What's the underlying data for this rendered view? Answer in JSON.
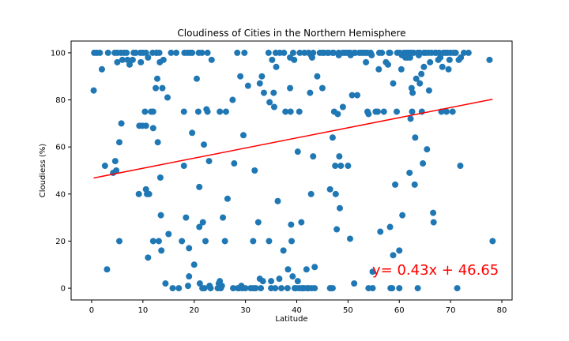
{
  "chart_data": {
    "type": "scatter",
    "title": "Cloudiness of Cities in the Northern Hemisphere",
    "xlabel": "Latitude",
    "ylabel": "Cloudiess (%)",
    "xlim": [
      -4,
      82
    ],
    "ylim": [
      -5,
      105
    ],
    "xticks": [
      0,
      10,
      20,
      30,
      40,
      50,
      60,
      70,
      80
    ],
    "yticks": [
      0,
      20,
      40,
      60,
      80,
      100
    ],
    "grid": false,
    "point_color": "#1f77b4",
    "regression": {
      "slope": 0.43,
      "intercept": 46.65,
      "x_range": [
        0.4,
        78.2
      ],
      "color": "#ff0000",
      "label": "y= 0.43x + 46.65"
    },
    "points": [
      [
        0.4,
        84
      ],
      [
        0.5,
        100
      ],
      [
        1,
        100
      ],
      [
        1.6,
        100
      ],
      [
        2,
        93
      ],
      [
        2.6,
        52
      ],
      [
        3,
        8
      ],
      [
        3.2,
        100
      ],
      [
        4.2,
        49
      ],
      [
        4.5,
        100
      ],
      [
        4.6,
        54
      ],
      [
        4.8,
        50
      ],
      [
        5,
        100
      ],
      [
        5,
        96
      ],
      [
        5.4,
        62
      ],
      [
        5.4,
        20
      ],
      [
        5.7,
        100
      ],
      [
        5.8,
        70
      ],
      [
        6,
        97
      ],
      [
        6.3,
        100
      ],
      [
        6.8,
        100
      ],
      [
        7,
        97
      ],
      [
        7.4,
        95
      ],
      [
        8,
        97
      ],
      [
        8.2,
        100
      ],
      [
        8.6,
        100
      ],
      [
        9.2,
        40
      ],
      [
        9.3,
        69
      ],
      [
        9.5,
        100
      ],
      [
        9.6,
        96
      ],
      [
        9.9,
        69
      ],
      [
        10,
        100
      ],
      [
        10.4,
        75
      ],
      [
        10.6,
        100
      ],
      [
        10.6,
        42
      ],
      [
        10.6,
        69
      ],
      [
        10.8,
        40
      ],
      [
        11,
        98
      ],
      [
        11,
        13
      ],
      [
        11.2,
        40
      ],
      [
        11.6,
        75
      ],
      [
        11.9,
        100
      ],
      [
        12,
        75
      ],
      [
        12,
        68
      ],
      [
        12,
        20
      ],
      [
        12.5,
        85
      ],
      [
        12.6,
        100
      ],
      [
        12.7,
        100
      ],
      [
        12.8,
        89
      ],
      [
        12.9,
        62
      ],
      [
        13.1,
        20
      ],
      [
        13.2,
        100
      ],
      [
        13.3,
        96
      ],
      [
        13.4,
        47
      ],
      [
        13.5,
        31
      ],
      [
        13.6,
        16
      ],
      [
        13.8,
        85
      ],
      [
        14,
        97
      ],
      [
        14.4,
        2
      ],
      [
        14.8,
        81
      ],
      [
        15,
        23
      ],
      [
        15.5,
        100
      ],
      [
        15.8,
        0
      ],
      [
        16.5,
        100
      ],
      [
        17,
        0
      ],
      [
        17.6,
        20
      ],
      [
        18,
        75
      ],
      [
        18.1,
        100
      ],
      [
        18,
        52
      ],
      [
        18.4,
        30
      ],
      [
        18.7,
        100
      ],
      [
        18.8,
        1
      ],
      [
        19,
        5
      ],
      [
        19,
        17
      ],
      [
        19.2,
        100
      ],
      [
        19.6,
        66
      ],
      [
        19.6,
        100
      ],
      [
        20,
        10
      ],
      [
        20.5,
        89
      ],
      [
        20.8,
        75
      ],
      [
        20.9,
        100
      ],
      [
        21,
        43
      ],
      [
        21.1,
        2
      ],
      [
        21,
        26
      ],
      [
        21.5,
        100
      ],
      [
        21.6,
        0
      ],
      [
        21.7,
        28
      ],
      [
        21.9,
        61
      ],
      [
        22,
        0
      ],
      [
        22.2,
        20
      ],
      [
        22.4,
        76
      ],
      [
        22.6,
        75
      ],
      [
        22.6,
        100
      ],
      [
        22.9,
        54
      ],
      [
        23,
        1
      ],
      [
        23.2,
        0
      ],
      [
        23.4,
        97
      ],
      [
        24.6,
        0
      ],
      [
        24.8,
        2
      ],
      [
        25,
        75
      ],
      [
        25,
        3
      ],
      [
        25.2,
        0
      ],
      [
        25.4,
        1
      ],
      [
        25.6,
        30
      ],
      [
        26,
        20
      ],
      [
        26.2,
        75
      ],
      [
        26.5,
        38
      ],
      [
        27.5,
        80
      ],
      [
        27.6,
        0
      ],
      [
        27.8,
        53
      ],
      [
        28.4,
        100
      ],
      [
        28.5,
        0
      ],
      [
        28.8,
        0
      ],
      [
        29,
        90
      ],
      [
        29.2,
        1
      ],
      [
        29.4,
        0
      ],
      [
        29.6,
        65
      ],
      [
        29.8,
        100
      ],
      [
        30,
        0
      ],
      [
        30.5,
        86
      ],
      [
        31,
        0
      ],
      [
        31.5,
        0
      ],
      [
        31.5,
        20
      ],
      [
        31.8,
        50
      ],
      [
        32,
        0
      ],
      [
        32.5,
        28
      ],
      [
        32.8,
        4
      ],
      [
        32.8,
        87
      ],
      [
        33.2,
        90
      ],
      [
        33,
        0
      ],
      [
        33.4,
        3
      ],
      [
        33.6,
        83
      ],
      [
        34.5,
        100
      ],
      [
        34.6,
        20
      ],
      [
        34.7,
        79
      ],
      [
        35,
        0
      ],
      [
        35,
        3
      ],
      [
        35.2,
        97
      ],
      [
        35.5,
        83
      ],
      [
        35.6,
        77
      ],
      [
        35.8,
        0
      ],
      [
        35.9,
        100
      ],
      [
        36,
        94
      ],
      [
        36.3,
        37
      ],
      [
        36.6,
        4
      ],
      [
        36.7,
        100
      ],
      [
        37,
        0
      ],
      [
        37.4,
        16
      ],
      [
        37.5,
        100
      ],
      [
        37.8,
        75
      ],
      [
        38.2,
        0
      ],
      [
        38.3,
        8
      ],
      [
        38.7,
        98
      ],
      [
        38.7,
        85
      ],
      [
        38.8,
        75
      ],
      [
        38.9,
        27
      ],
      [
        39,
        20
      ],
      [
        39.2,
        5
      ],
      [
        39.3,
        100
      ],
      [
        39.5,
        97
      ],
      [
        39.6,
        0
      ],
      [
        39.8,
        0
      ],
      [
        40.2,
        58
      ],
      [
        40.2,
        3
      ],
      [
        40.4,
        0
      ],
      [
        40.5,
        75
      ],
      [
        40.6,
        100
      ],
      [
        40.9,
        28
      ],
      [
        41,
        0
      ],
      [
        41.1,
        0
      ],
      [
        41.4,
        0
      ],
      [
        41.5,
        100
      ],
      [
        41.9,
        8
      ],
      [
        42,
        0
      ],
      [
        42.3,
        0
      ],
      [
        42.3,
        100
      ],
      [
        42.6,
        83
      ],
      [
        42.8,
        99
      ],
      [
        42.8,
        40
      ],
      [
        42.9,
        0
      ],
      [
        43,
        98
      ],
      [
        43.2,
        56
      ],
      [
        43.2,
        100
      ],
      [
        43.5,
        0
      ],
      [
        43.5,
        9
      ],
      [
        44,
        90
      ],
      [
        44.5,
        100
      ],
      [
        45,
        85
      ],
      [
        45,
        100
      ],
      [
        45.3,
        100
      ],
      [
        46,
        100
      ],
      [
        46.2,
        100
      ],
      [
        46.5,
        42
      ],
      [
        46.5,
        0
      ],
      [
        46.6,
        0
      ],
      [
        47,
        64
      ],
      [
        47,
        100
      ],
      [
        47,
        0
      ],
      [
        47.2,
        100
      ],
      [
        47.3,
        75
      ],
      [
        47.5,
        52
      ],
      [
        47.6,
        40
      ],
      [
        47.8,
        25
      ],
      [
        48,
        74
      ],
      [
        48.2,
        100
      ],
      [
        48.2,
        99
      ],
      [
        48.3,
        56
      ],
      [
        48.4,
        34
      ],
      [
        48.6,
        52
      ],
      [
        49,
        100
      ],
      [
        49,
        77
      ],
      [
        49.4,
        100
      ],
      [
        49.8,
        100
      ],
      [
        50,
        52
      ],
      [
        50.2,
        100
      ],
      [
        50.4,
        21
      ],
      [
        50.4,
        100
      ],
      [
        50.5,
        99
      ],
      [
        50.8,
        82
      ],
      [
        51.2,
        100
      ],
      [
        51.2,
        2
      ],
      [
        51.4,
        100
      ],
      [
        51.8,
        82
      ],
      [
        52.2,
        100
      ],
      [
        52.6,
        100
      ],
      [
        53,
        100
      ],
      [
        53.4,
        100
      ],
      [
        53.5,
        96
      ],
      [
        53.8,
        100
      ],
      [
        53.8,
        75
      ],
      [
        54,
        74
      ],
      [
        54,
        0
      ],
      [
        54.4,
        100
      ],
      [
        54.6,
        99
      ],
      [
        54.8,
        0
      ],
      [
        54.8,
        7
      ],
      [
        55.4,
        75
      ],
      [
        55.8,
        75
      ],
      [
        56,
        93
      ],
      [
        56.1,
        100
      ],
      [
        56.3,
        24
      ],
      [
        56.6,
        100
      ],
      [
        57,
        75
      ],
      [
        57.4,
        96
      ],
      [
        57.8,
        95
      ],
      [
        58,
        100
      ],
      [
        58.2,
        26
      ],
      [
        58.2,
        100
      ],
      [
        58.3,
        0
      ],
      [
        58.6,
        0
      ],
      [
        58.8,
        87
      ],
      [
        58.8,
        14
      ],
      [
        59.2,
        44
      ],
      [
        59.5,
        75
      ],
      [
        59.6,
        100
      ],
      [
        60,
        16
      ],
      [
        60,
        0
      ],
      [
        60.1,
        100
      ],
      [
        60.4,
        93
      ],
      [
        60.5,
        99
      ],
      [
        60.6,
        31
      ],
      [
        60.9,
        100
      ],
      [
        61.2,
        98
      ],
      [
        61.4,
        100
      ],
      [
        61.6,
        98
      ],
      [
        61.8,
        100
      ],
      [
        62,
        100
      ],
      [
        62,
        49
      ],
      [
        62.1,
        98
      ],
      [
        62.2,
        72
      ],
      [
        62.3,
        100
      ],
      [
        62.4,
        85
      ],
      [
        62.5,
        75
      ],
      [
        62.6,
        83
      ],
      [
        62.8,
        100
      ],
      [
        63,
        44
      ],
      [
        63.1,
        64
      ],
      [
        63.3,
        89
      ],
      [
        63.6,
        100
      ],
      [
        63.6,
        0
      ],
      [
        63.8,
        99
      ],
      [
        64,
        87
      ],
      [
        64,
        100
      ],
      [
        64.3,
        91
      ],
      [
        64.4,
        75
      ],
      [
        64.6,
        53
      ],
      [
        64.8,
        94
      ],
      [
        64.8,
        100
      ],
      [
        65.1,
        100
      ],
      [
        65.4,
        59
      ],
      [
        65.7,
        100
      ],
      [
        65.8,
        84
      ],
      [
        66,
        96
      ],
      [
        66.3,
        100
      ],
      [
        66.6,
        32
      ],
      [
        66.7,
        28
      ],
      [
        67,
        100
      ],
      [
        67.2,
        100
      ],
      [
        67.6,
        97
      ],
      [
        67.8,
        100
      ],
      [
        68,
        98
      ],
      [
        68.2,
        75
      ],
      [
        68.4,
        94
      ],
      [
        68.6,
        100
      ],
      [
        69,
        100
      ],
      [
        69.2,
        75
      ],
      [
        69.4,
        100
      ],
      [
        69.6,
        93
      ],
      [
        69.8,
        97
      ],
      [
        70,
        100
      ],
      [
        70.4,
        75
      ],
      [
        70.6,
        100
      ],
      [
        71,
        100
      ],
      [
        71.3,
        0
      ],
      [
        71.6,
        97
      ],
      [
        71.9,
        52
      ],
      [
        72,
        98
      ],
      [
        72.6,
        100
      ],
      [
        73.5,
        100
      ],
      [
        77.6,
        97
      ],
      [
        78.2,
        20
      ]
    ]
  }
}
